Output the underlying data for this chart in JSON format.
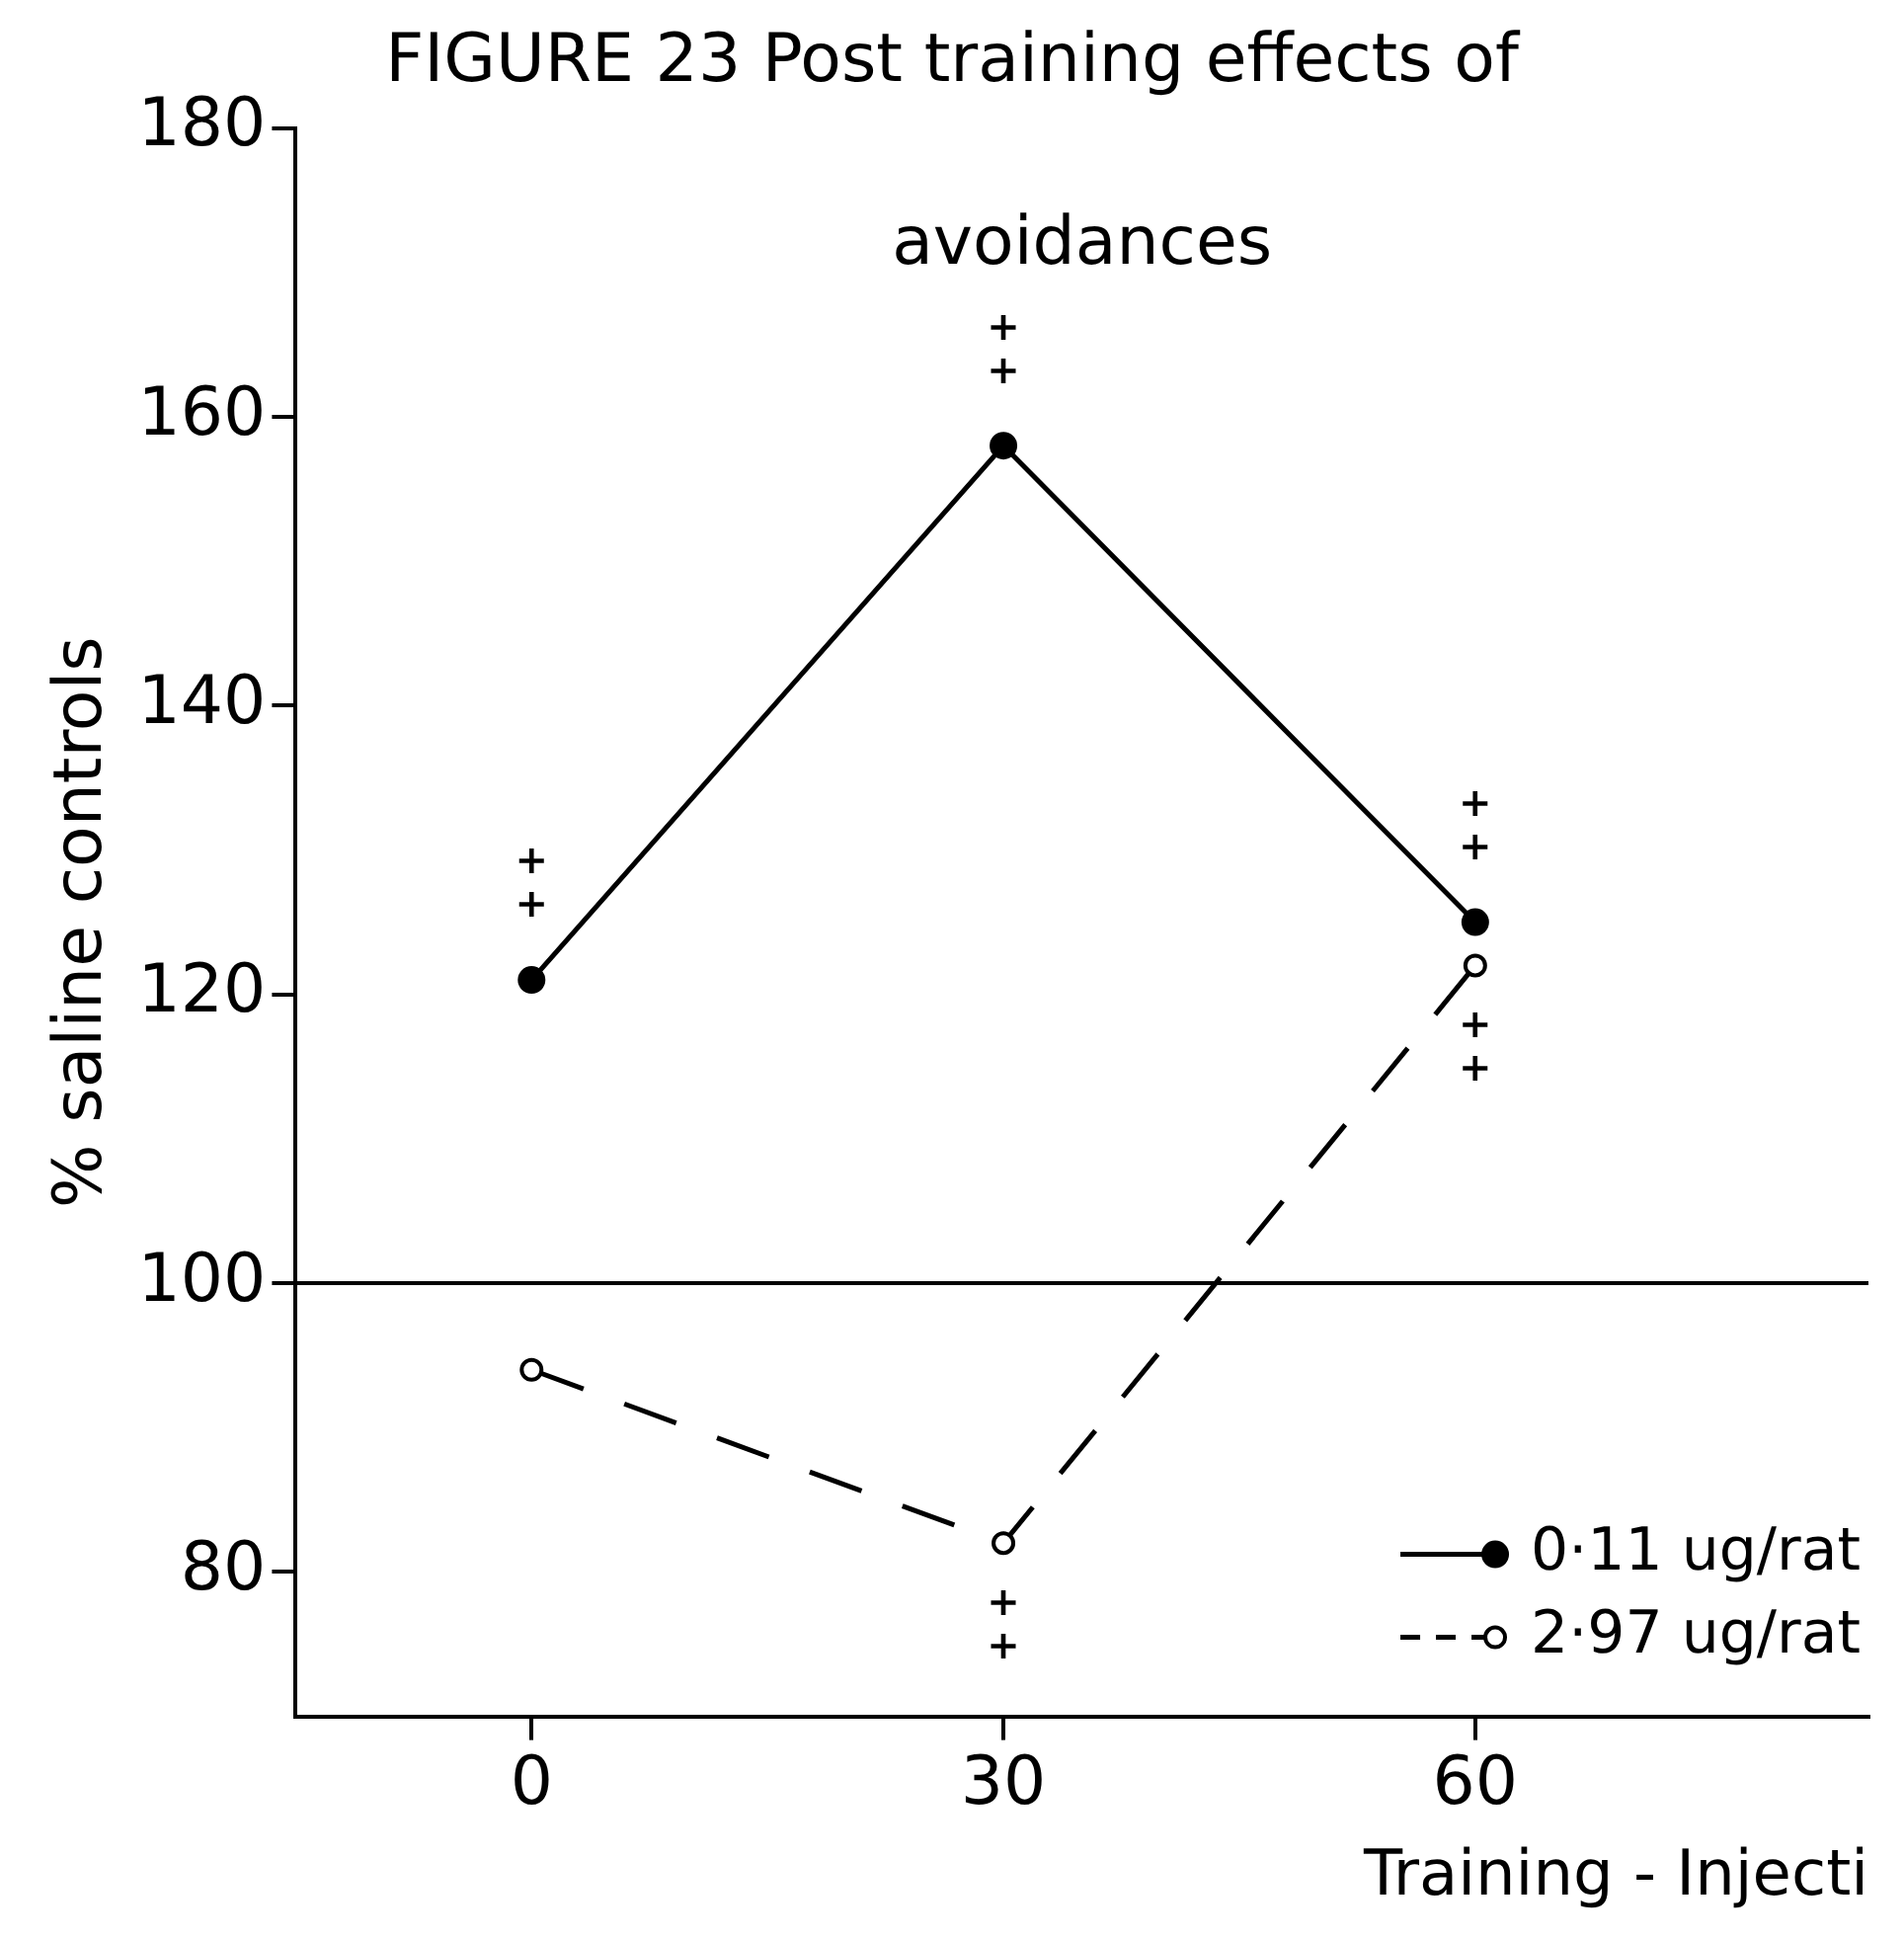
{
  "chart_data": {
    "type": "line",
    "title": "FIGURE 23 Post training effects of",
    "xlabel": "Training - Injecti",
    "ylabel": "% saline controls",
    "x": [
      0,
      30,
      60
    ],
    "xlim": [
      -15,
      85
    ],
    "xticks": [
      0,
      30,
      60
    ],
    "ylim": [
      70,
      180
    ],
    "yticks": [
      80,
      100,
      120,
      140,
      160,
      180
    ],
    "series": [
      {
        "name": "0·11 ug/rat",
        "color": "#000000",
        "values": [
          121,
          158,
          125
        ],
        "line_style": "solid",
        "marker": "circle"
      },
      {
        "name": "2·97 ug/rat",
        "color": "#000000",
        "values": [
          94,
          82,
          122
        ],
        "line_style": "dashed",
        "marker": "circle"
      }
    ],
    "ref_lines": [
      {
        "axis": "y",
        "value": 100,
        "label": null,
        "color": "#000000"
      }
    ],
    "annotations": [
      "avoidances",
      {
        "text": "+\n+",
        "x": 0,
        "y": 121
      },
      {
        "text": "+\n+",
        "x": 30,
        "y": 158
      },
      {
        "text": "+\n+",
        "x": 60,
        "y": 125
      },
      {
        "text": "+\n+",
        "x": 60,
        "y": 122
      },
      {
        "text": "+\n+",
        "x": 30,
        "y": 82
      }
    ],
    "grid": false,
    "legend": "bottom right"
  }
}
